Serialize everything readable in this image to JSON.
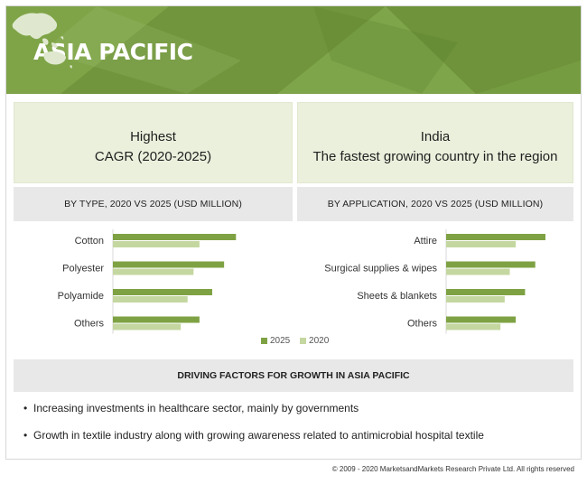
{
  "banner": {
    "title": "ASIA PACIFIC",
    "color": "#769c41"
  },
  "highlights": {
    "left": {
      "line1": "Highest",
      "line2": "CAGR (2020-2025)"
    },
    "right": {
      "line1": "India",
      "line2": "The fastest growing country in the region"
    }
  },
  "colors": {
    "series_2025": "#7ea243",
    "series_2020": "#c4d7a0",
    "panel_bg": "#eaf0dc",
    "header_bg": "#e8e8e8"
  },
  "chart_data": [
    {
      "type": "bar",
      "orientation": "horizontal",
      "title": "BY TYPE, 2020 VS 2025 (USD MILLION)",
      "categories": [
        "Cotton",
        "Polyester",
        "Polyamide",
        "Others"
      ],
      "series": [
        {
          "name": "2025",
          "values": [
            145,
            131,
            117,
            102
          ]
        },
        {
          "name": "2020",
          "values": [
            102,
            95,
            88,
            80
          ]
        }
      ],
      "xlim": [
        0,
        150
      ]
    },
    {
      "type": "bar",
      "orientation": "horizontal",
      "title": "BY APPLICATION,  2020 VS 2025 (USD MILLION)",
      "categories": [
        "Attire",
        "Surgical supplies & wipes",
        "Sheets & blankets",
        "Others"
      ],
      "series": [
        {
          "name": "2025",
          "values": [
            117,
            105,
            93,
            82
          ]
        },
        {
          "name": "2020",
          "values": [
            82,
            75,
            69,
            64
          ]
        }
      ],
      "xlim": [
        0,
        150
      ]
    }
  ],
  "legend": {
    "items": [
      "2025",
      "2020"
    ]
  },
  "drivers": {
    "title": "DRIVING FACTORS FOR GROWTH IN ASIA PACIFIC",
    "items": [
      "Increasing investments in healthcare sector, mainly by governments",
      "Growth in textile industry along with growing awareness related to antimicrobial hospital textile"
    ]
  },
  "footer": {
    "copyright": "© 2009 - 2020 MarketsandMarkets Research Private Ltd. All rights reserved"
  }
}
